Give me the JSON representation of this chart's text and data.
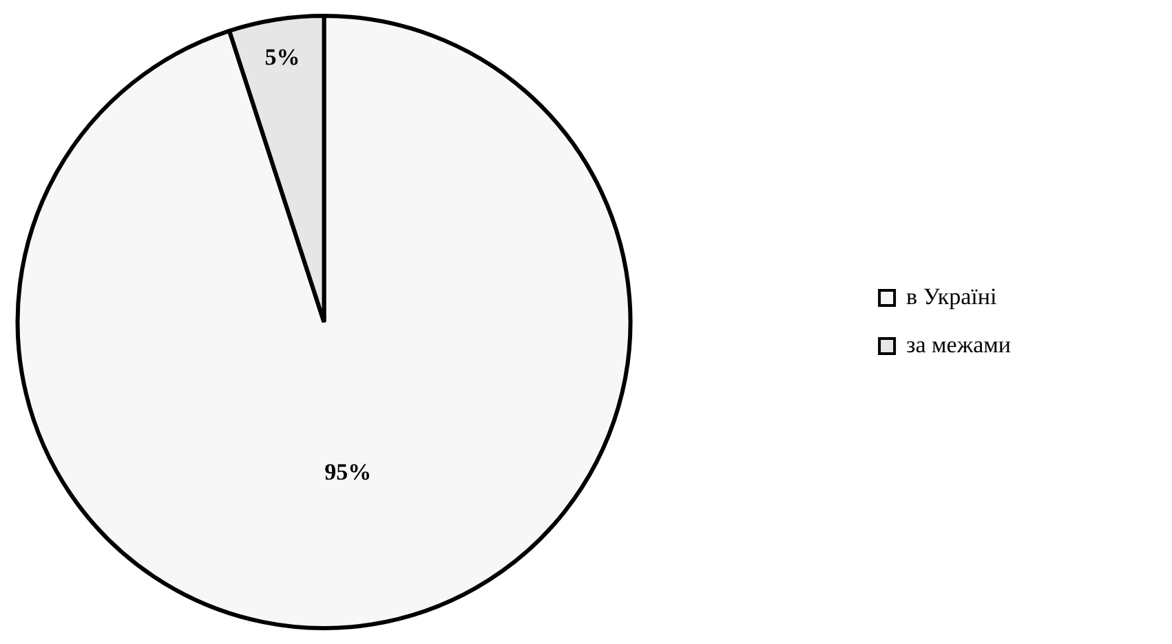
{
  "chart_data": {
    "type": "pie",
    "categories": [
      "в Україні",
      "за межами"
    ],
    "values": [
      95,
      5
    ],
    "colors": [
      "#f7f7f7",
      "#e6e6e6"
    ],
    "value_labels": [
      "95%",
      "5%"
    ],
    "legend": "right"
  }
}
